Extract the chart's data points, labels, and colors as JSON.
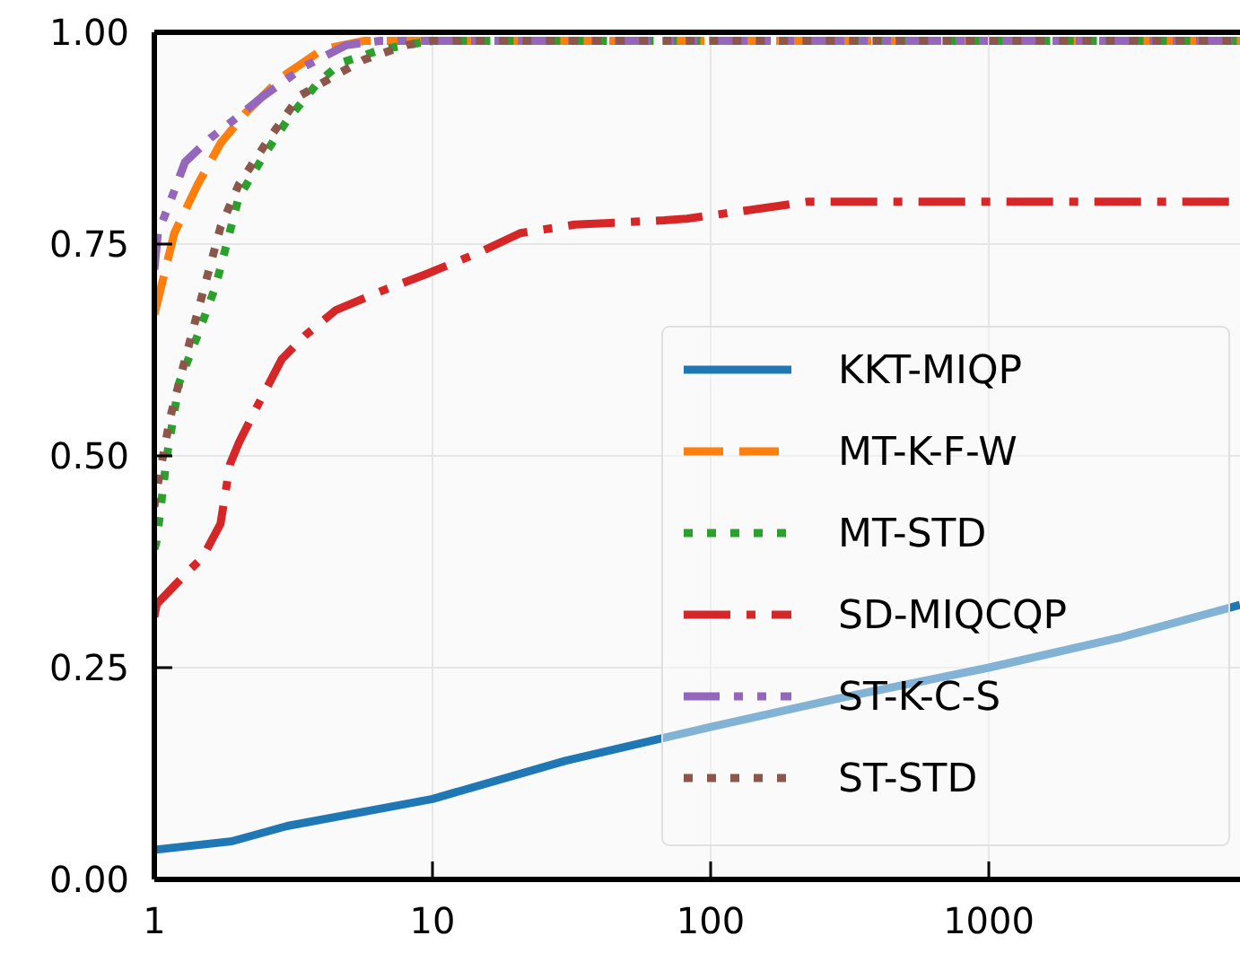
{
  "chart_data": {
    "type": "line",
    "log": "x",
    "grid": true,
    "legend": "right",
    "xlim": [
      1,
      8000
    ],
    "xticks": [
      1,
      10,
      100,
      1000
    ],
    "ylim": [
      0,
      1
    ],
    "yticks": [
      {
        "value": 0,
        "label": "0.00"
      },
      {
        "value": 0.25,
        "label": "0.25"
      },
      {
        "value": 0.5,
        "label": "0.50"
      },
      {
        "value": 0.75,
        "label": "0.75"
      },
      {
        "value": 1,
        "label": "1.00"
      }
    ],
    "series": [
      {
        "name": "KKT-MIQP",
        "color": "#1f77b4",
        "line_style": "solid",
        "x": [
          1,
          1.9,
          3,
          10,
          30,
          100,
          300,
          1000,
          3000,
          8000
        ],
        "values": [
          0.035,
          0.045,
          0.063,
          0.095,
          0.14,
          0.18,
          0.215,
          0.25,
          0.286,
          0.324
        ]
      },
      {
        "name": "MT-K-F-W",
        "color": "#ff7f0e",
        "line_style": "dashed",
        "x": [
          1,
          1.02,
          1.18,
          1.43,
          1.73,
          2.13,
          2.87,
          4.04,
          5.7,
          8000
        ],
        "values": [
          0.667,
          0.678,
          0.763,
          0.82,
          0.869,
          0.905,
          0.947,
          0.98,
          0.99,
          0.99
        ]
      },
      {
        "name": "MT-STD",
        "color": "#2ca02c",
        "line_style": "dotted",
        "x": [
          1,
          1.02,
          1.11,
          1.23,
          1.43,
          1.66,
          1.84,
          2.01,
          2.47,
          3.0,
          3.86,
          4.69,
          6.6,
          9.9,
          8000
        ],
        "values": [
          0.39,
          0.4,
          0.5,
          0.587,
          0.642,
          0.7,
          0.756,
          0.805,
          0.854,
          0.896,
          0.94,
          0.964,
          0.98,
          0.99,
          0.99
        ]
      },
      {
        "name": "SD-MIQCQP",
        "color": "#d62728",
        "line_style": "dashdot",
        "x": [
          1,
          1.02,
          1.29,
          1.49,
          1.73,
          1.87,
          2.01,
          2.33,
          2.87,
          3.48,
          4.49,
          6.6,
          9.4,
          14.7,
          20.7,
          32.5,
          68,
          82,
          137,
          223,
          8000
        ],
        "values": [
          0.31,
          0.325,
          0.36,
          0.38,
          0.42,
          0.49,
          0.515,
          0.557,
          0.614,
          0.642,
          0.672,
          0.695,
          0.714,
          0.74,
          0.763,
          0.773,
          0.778,
          0.78,
          0.79,
          0.8,
          0.8
        ]
      },
      {
        "name": "ST-K-C-S",
        "color": "#9467bd",
        "line_style": "dashdotdot",
        "x": [
          1,
          1.03,
          1.14,
          1.29,
          1.59,
          1.92,
          2.47,
          3.48,
          4.9,
          6.5,
          8000
        ],
        "values": [
          0.72,
          0.763,
          0.8,
          0.847,
          0.875,
          0.896,
          0.925,
          0.96,
          0.985,
          0.99,
          0.99
        ]
      },
      {
        "name": "ST-STD",
        "color": "#8c564b",
        "line_style": "dotted",
        "x": [
          1,
          1.02,
          1.14,
          1.29,
          1.47,
          1.66,
          1.73,
          2.01,
          2.59,
          3.33,
          4.69,
          5.7,
          8.1,
          10,
          8000
        ],
        "values": [
          0.44,
          0.46,
          0.545,
          0.614,
          0.684,
          0.748,
          0.77,
          0.82,
          0.875,
          0.925,
          0.953,
          0.968,
          0.985,
          0.99,
          0.99
        ]
      }
    ]
  }
}
